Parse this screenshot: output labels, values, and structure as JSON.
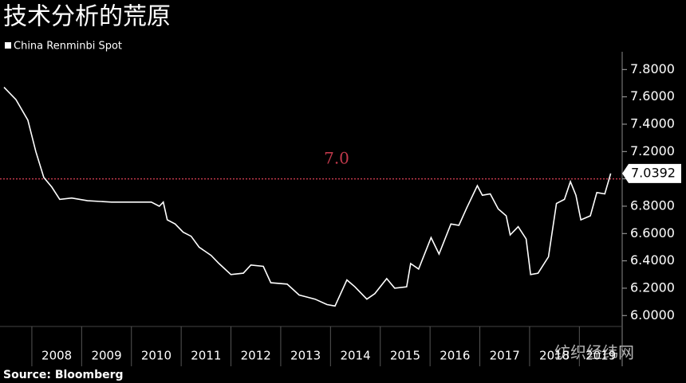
{
  "chart_data": {
    "type": "line",
    "title": "技术分析的荒原",
    "source": "Source: Bloomberg",
    "watermark": "纺织经纬网",
    "x": [
      2007.44,
      2007.68,
      2007.92,
      2008.08,
      2008.24,
      2008.4,
      2008.56,
      2008.8,
      2009.12,
      2009.6,
      2010.4,
      2010.56,
      2010.64,
      2010.72,
      2010.88,
      2011.04,
      2011.2,
      2011.36,
      2011.6,
      2011.76,
      2012.0,
      2012.25,
      2012.4,
      2012.65,
      2012.8,
      2013.13,
      2013.37,
      2013.69,
      2013.93,
      2014.09,
      2014.33,
      2014.49,
      2014.73,
      2014.89,
      2015.13,
      2015.29,
      2015.53,
      2015.61,
      2015.77,
      2016.02,
      2016.18,
      2016.42,
      2016.58,
      2016.74,
      2016.95,
      2017.05,
      2017.21,
      2017.37,
      2017.53,
      2017.61,
      2017.77,
      2017.93,
      2018.02,
      2018.17,
      2018.38,
      2018.54,
      2018.7,
      2018.82,
      2018.93,
      2019.03,
      2019.22,
      2019.35,
      2019.51,
      2019.63
    ],
    "series": [
      {
        "name": "China Renminbi Spot",
        "color": "#ffffff",
        "values": [
          7.67,
          7.58,
          7.43,
          7.2,
          7.01,
          6.94,
          6.85,
          6.86,
          6.84,
          6.83,
          6.83,
          6.8,
          6.83,
          6.7,
          6.67,
          6.61,
          6.58,
          6.5,
          6.44,
          6.38,
          6.3,
          6.31,
          6.37,
          6.36,
          6.24,
          6.23,
          6.15,
          6.12,
          6.08,
          6.07,
          6.26,
          6.21,
          6.12,
          6.16,
          6.27,
          6.2,
          6.21,
          6.38,
          6.34,
          6.57,
          6.45,
          6.67,
          6.66,
          6.79,
          6.95,
          6.88,
          6.89,
          6.78,
          6.73,
          6.59,
          6.65,
          6.56,
          6.3,
          6.31,
          6.43,
          6.82,
          6.85,
          6.98,
          6.88,
          6.7,
          6.73,
          6.9,
          6.89,
          7.0392
        ]
      }
    ],
    "xlim": [
      2007.36,
      2019.86
    ],
    "xticks": [
      2008,
      2009,
      2010,
      2011,
      2012,
      2013,
      2014,
      2015,
      2016,
      2017,
      2018,
      2019
    ],
    "ylim": [
      5.92,
      7.93
    ],
    "yticks": [
      {
        "value": 6.0,
        "label": "6.0000"
      },
      {
        "value": 6.2,
        "label": "6.2000"
      },
      {
        "value": 6.4,
        "label": "6.4000"
      },
      {
        "value": 6.6,
        "label": "6.6000"
      },
      {
        "value": 6.8,
        "label": "6.8000"
      },
      {
        "value": 7.0,
        "label": "7.0000"
      },
      {
        "value": 7.2,
        "label": "7.2000"
      },
      {
        "value": 7.4,
        "label": "7.4000"
      },
      {
        "value": 7.6,
        "label": "7.6000"
      },
      {
        "value": 7.8,
        "label": "7.8000"
      }
    ],
    "reference_line": {
      "value": 7,
      "label": "7.0",
      "color": "#c0394b"
    },
    "grid": false
  }
}
